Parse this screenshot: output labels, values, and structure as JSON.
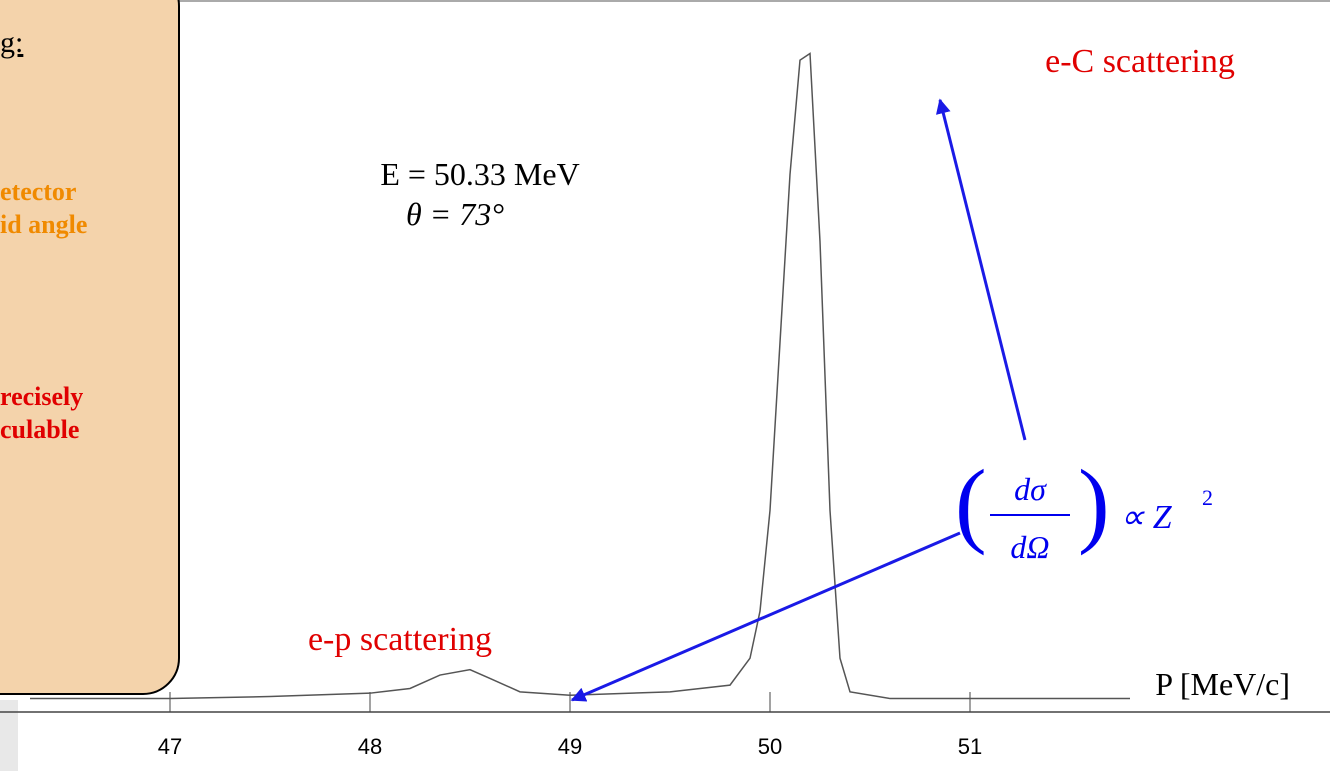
{
  "chart_data": {
    "type": "line",
    "x": [
      46.3,
      47.0,
      47.5,
      48.0,
      48.2,
      48.35,
      48.5,
      48.6,
      48.75,
      49.0,
      49.5,
      49.8,
      49.9,
      49.95,
      50.0,
      50.05,
      50.1,
      50.15,
      50.2,
      50.25,
      50.3,
      50.35,
      50.4,
      50.6,
      51.0,
      51.8
    ],
    "series": [
      {
        "color": "#555555",
        "values": [
          2,
          2,
          2.3,
          2.8,
          3.5,
          5.5,
          6.3,
          5,
          3,
          2.5,
          3,
          4,
          8,
          15,
          30,
          55,
          80,
          97,
          98,
          70,
          30,
          8,
          3,
          2,
          2,
          2
        ]
      }
    ],
    "xlim": [
      46.2,
      51.8
    ],
    "xticks": [
      47,
      48,
      49,
      50,
      51
    ],
    "ylim": [
      0,
      100
    ],
    "xlabel": "P [MeV/c]",
    "annotations": {
      "energy": "E = 50.33 MeV",
      "angle": "θ = 73°",
      "carbon": "e-C scattering",
      "proton": "e-p scattering",
      "numerator": "dσ",
      "denominator": "dΩ",
      "proportional": "∝ Z",
      "exponent": "2"
    }
  },
  "side_panel": {
    "heading": "g:",
    "line1": "etector",
    "line2": "id angle",
    "line3": "recisely",
    "line4": "culable"
  }
}
